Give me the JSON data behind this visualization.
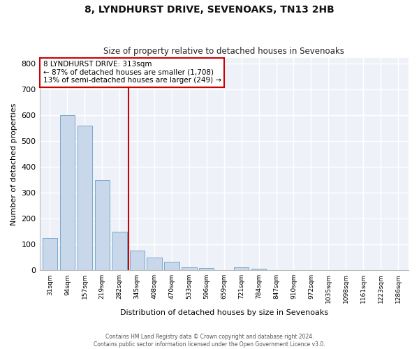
{
  "title": "8, LYNDHURST DRIVE, SEVENOAKS, TN13 2HB",
  "subtitle": "Size of property relative to detached houses in Sevenoaks",
  "xlabel": "Distribution of detached houses by size in Sevenoaks",
  "ylabel": "Number of detached properties",
  "bin_labels": [
    "31sqm",
    "94sqm",
    "157sqm",
    "219sqm",
    "282sqm",
    "345sqm",
    "408sqm",
    "470sqm",
    "533sqm",
    "596sqm",
    "659sqm",
    "721sqm",
    "784sqm",
    "847sqm",
    "910sqm",
    "972sqm",
    "1035sqm",
    "1098sqm",
    "1161sqm",
    "1223sqm",
    "1286sqm"
  ],
  "bar_values": [
    125,
    600,
    558,
    348,
    150,
    75,
    50,
    32,
    12,
    8,
    0,
    10,
    5,
    0,
    0,
    0,
    0,
    0,
    0,
    0,
    0
  ],
  "bar_color": "#c8d8ea",
  "bar_edge_color": "#7aa8cc",
  "vline_x": 4.5,
  "vline_color": "#cc0000",
  "annotation_title": "8 LYNDHURST DRIVE: 313sqm",
  "annotation_line1": "← 87% of detached houses are smaller (1,708)",
  "annotation_line2": "13% of semi-detached houses are larger (249) →",
  "annotation_box_edge_color": "#cc0000",
  "ylim": [
    0,
    820
  ],
  "yticks": [
    0,
    100,
    200,
    300,
    400,
    500,
    600,
    700,
    800
  ],
  "footer1": "Contains HM Land Registry data © Crown copyright and database right 2024.",
  "footer2": "Contains public sector information licensed under the Open Government Licence v3.0.",
  "bg_color": "#ffffff",
  "plot_bg_color": "#eef2f8"
}
